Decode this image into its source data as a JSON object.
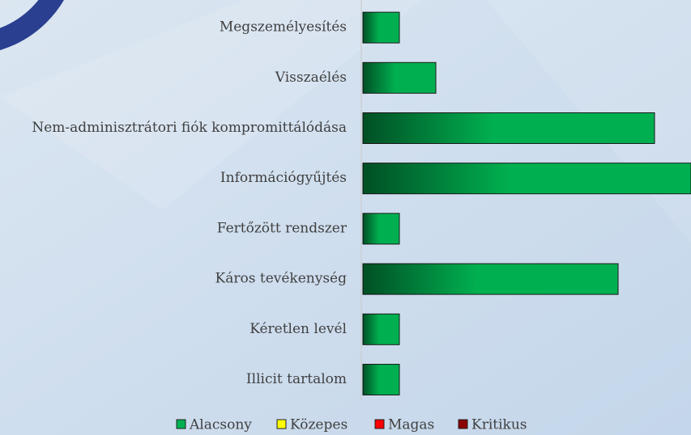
{
  "chart_data": {
    "type": "bar",
    "orientation": "horizontal",
    "stacked": true,
    "categories": [
      "Megszemélyesítés",
      "Visszaélés",
      "Nem-adminisztrátori fiók kompromittálódása",
      "Információgyűjtés",
      "Fertőzött rendszer",
      "Káros tevékenység",
      "Kéretlen levél",
      "Illicit tartalom"
    ],
    "series": [
      {
        "name": "Alacsony",
        "color": "#00b050",
        "values": [
          1,
          2,
          8,
          9,
          1,
          7,
          1,
          1
        ]
      },
      {
        "name": "Közepes",
        "color": "#ffff00",
        "values": [
          0,
          0,
          0,
          0,
          0,
          0,
          0,
          0
        ]
      },
      {
        "name": "Magas",
        "color": "#ff0000",
        "values": [
          0,
          0,
          0,
          0,
          0,
          0,
          0,
          0
        ]
      },
      {
        "name": "Kritikus",
        "color": "#8b0000",
        "values": [
          0,
          0,
          0,
          0,
          0,
          0,
          0,
          0
        ]
      }
    ],
    "xlim": [
      0,
      9
    ],
    "legend": "bottom"
  }
}
